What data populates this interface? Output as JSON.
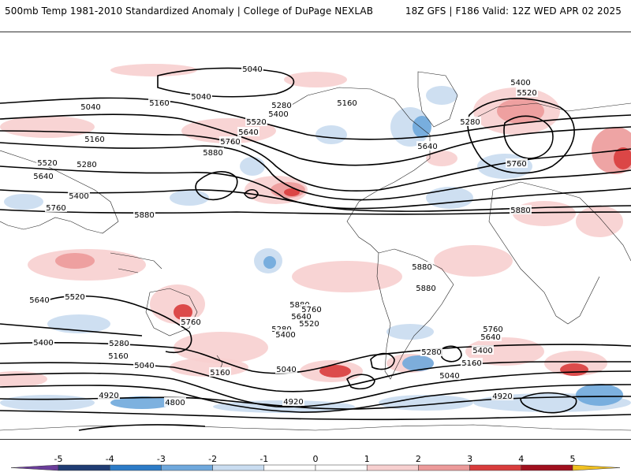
{
  "header": {
    "title": "500mb Temp 1981-2010 Standardized Anomaly | College of DuPage NEXLAB",
    "run_info": "18Z GFS | F186 Valid: 12Z WED APR 02 2025"
  },
  "colors": {
    "anom_neg5": "#6a3d9a",
    "anom_neg4": "#1f3c73",
    "anom_neg3": "#2c7bc7",
    "anom_neg2": "#6fa8dc",
    "anom_neg1": "#c9dcf0",
    "anom_0": "#ffffff",
    "anom_pos1": "#f7cfcf",
    "anom_pos2": "#ec9a9a",
    "anom_pos3": "#d83c3c",
    "anom_pos4": "#a0101e",
    "anom_pos5": "#f0c020",
    "contour": "#000000",
    "coastline": "#222222"
  },
  "colorbar": {
    "ticks": [
      "-5",
      "-4",
      "-3",
      "-2",
      "-1",
      "0",
      "1",
      "2",
      "3",
      "4",
      "5"
    ]
  },
  "contours": {
    "labels": [
      "5040",
      "5160",
      "5280",
      "5400",
      "5520",
      "5640",
      "5760",
      "5880",
      "5040",
      "5160",
      "5280",
      "5400",
      "5520",
      "5640",
      "5760",
      "5880",
      "5040",
      "5160",
      "5280",
      "5400",
      "5520",
      "5640",
      "5760",
      "5880",
      "4800",
      "4920",
      "5040",
      "5160",
      "5280",
      "5400",
      "5520",
      "5640",
      "5760",
      "5880",
      "4920",
      "5040",
      "5160",
      "5280",
      "5400",
      "5520",
      "5640",
      "5760",
      "5880",
      "4920",
      "5040",
      "5160",
      "5280",
      "5400",
      "5640",
      "5760",
      "5880"
    ]
  }
}
